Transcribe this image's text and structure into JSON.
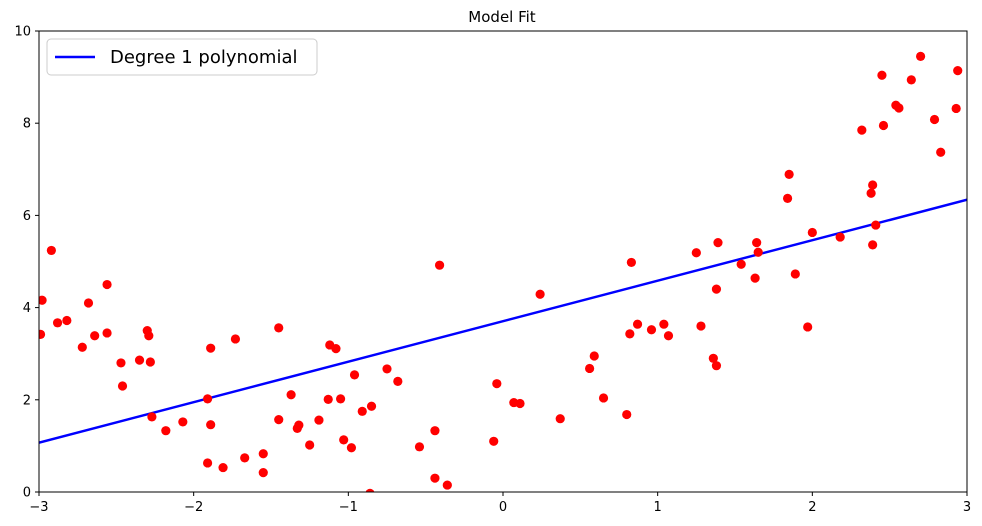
{
  "chart_data": {
    "type": "scatter",
    "title": "Model Fit",
    "xlabel": "",
    "ylabel": "",
    "xlim": [
      -3,
      3
    ],
    "ylim": [
      0,
      10
    ],
    "xticks": [
      -3,
      -2,
      -1,
      0,
      1,
      2,
      3
    ],
    "xtick_labels": [
      "−3",
      "−2",
      "−1",
      "0",
      "1",
      "2",
      "3"
    ],
    "yticks": [
      0,
      2,
      4,
      6,
      8,
      10
    ],
    "ytick_labels": [
      "0",
      "2",
      "4",
      "6",
      "8",
      "10"
    ],
    "grid": false,
    "legend": {
      "placement": "top-left",
      "entries": [
        "Degree 1 polynomial"
      ]
    },
    "colors": {
      "points": "#ff0000",
      "line": "#0000ff"
    },
    "series": [
      {
        "name": "",
        "kind": "scatter",
        "points": [
          [
            -2.98,
            4.16
          ],
          [
            -2.99,
            3.42
          ],
          [
            -2.92,
            5.24
          ],
          [
            -2.88,
            3.67
          ],
          [
            -2.82,
            3.72
          ],
          [
            -2.72,
            3.14
          ],
          [
            -2.68,
            4.1
          ],
          [
            -2.64,
            3.39
          ],
          [
            -2.56,
            4.5
          ],
          [
            -2.56,
            3.45
          ],
          [
            -2.47,
            2.8
          ],
          [
            -2.46,
            2.3
          ],
          [
            -2.35,
            2.86
          ],
          [
            -2.3,
            3.5
          ],
          [
            -2.29,
            3.39
          ],
          [
            -2.28,
            2.82
          ],
          [
            -2.27,
            1.63
          ],
          [
            -2.18,
            1.33
          ],
          [
            -2.07,
            1.52
          ],
          [
            -1.91,
            2.02
          ],
          [
            -1.91,
            0.63
          ],
          [
            -1.89,
            3.12
          ],
          [
            -1.89,
            1.46
          ],
          [
            -1.81,
            0.53
          ],
          [
            -1.73,
            3.32
          ],
          [
            -1.67,
            0.74
          ],
          [
            -1.55,
            0.83
          ],
          [
            -1.55,
            0.42
          ],
          [
            -1.45,
            3.56
          ],
          [
            -1.45,
            1.57
          ],
          [
            -1.37,
            2.11
          ],
          [
            -1.33,
            1.38
          ],
          [
            -1.32,
            1.45
          ],
          [
            -1.25,
            1.02
          ],
          [
            -1.19,
            1.56
          ],
          [
            -1.13,
            2.01
          ],
          [
            -1.12,
            3.19
          ],
          [
            -1.08,
            3.11
          ],
          [
            -1.05,
            2.02
          ],
          [
            -1.03,
            1.13
          ],
          [
            -0.98,
            0.96
          ],
          [
            -0.96,
            2.54
          ],
          [
            -0.91,
            1.75
          ],
          [
            -0.85,
            1.86
          ],
          [
            -0.86,
            -0.03
          ],
          [
            -0.75,
            2.67
          ],
          [
            -0.68,
            2.4
          ],
          [
            -0.54,
            0.98
          ],
          [
            -0.44,
            1.33
          ],
          [
            -0.44,
            0.3
          ],
          [
            -0.41,
            4.92
          ],
          [
            -0.36,
            0.15
          ],
          [
            -0.06,
            1.1
          ],
          [
            -0.04,
            2.35
          ],
          [
            0.07,
            1.94
          ],
          [
            0.11,
            1.92
          ],
          [
            0.24,
            4.29
          ],
          [
            0.37,
            1.59
          ],
          [
            0.56,
            2.68
          ],
          [
            0.59,
            2.95
          ],
          [
            0.65,
            2.04
          ],
          [
            0.8,
            1.68
          ],
          [
            0.82,
            3.43
          ],
          [
            0.83,
            4.98
          ],
          [
            0.87,
            3.64
          ],
          [
            0.96,
            3.52
          ],
          [
            1.04,
            3.64
          ],
          [
            1.07,
            3.39
          ],
          [
            1.25,
            5.19
          ],
          [
            1.28,
            3.6
          ],
          [
            1.36,
            2.9
          ],
          [
            1.38,
            2.74
          ],
          [
            1.38,
            4.4
          ],
          [
            1.39,
            5.41
          ],
          [
            1.54,
            4.94
          ],
          [
            1.63,
            4.64
          ],
          [
            1.64,
            5.41
          ],
          [
            1.65,
            5.2
          ],
          [
            1.84,
            6.37
          ],
          [
            1.85,
            6.89
          ],
          [
            1.89,
            4.73
          ],
          [
            1.97,
            3.58
          ],
          [
            2.0,
            5.63
          ],
          [
            2.18,
            5.53
          ],
          [
            2.32,
            7.85
          ],
          [
            2.38,
            6.48
          ],
          [
            2.39,
            6.66
          ],
          [
            2.39,
            5.36
          ],
          [
            2.41,
            5.79
          ],
          [
            2.45,
            9.04
          ],
          [
            2.46,
            7.95
          ],
          [
            2.54,
            8.39
          ],
          [
            2.56,
            8.33
          ],
          [
            2.64,
            8.94
          ],
          [
            2.7,
            9.45
          ],
          [
            2.79,
            8.08
          ],
          [
            2.83,
            7.37
          ],
          [
            2.93,
            8.32
          ],
          [
            2.94,
            9.14
          ]
        ]
      },
      {
        "name": "Degree 1 polynomial",
        "kind": "line",
        "x": [
          -3,
          3
        ],
        "y": [
          1.07,
          6.34
        ]
      }
    ]
  }
}
